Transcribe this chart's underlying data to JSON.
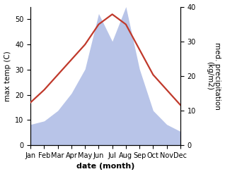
{
  "months": [
    "Jan",
    "Feb",
    "Mar",
    "Apr",
    "May",
    "Jun",
    "Jul",
    "Aug",
    "Sep",
    "Oct",
    "Nov",
    "Dec"
  ],
  "temperature": [
    17,
    22,
    28,
    34,
    40,
    48,
    52,
    48,
    38,
    28,
    22,
    16
  ],
  "precipitation": [
    6,
    7,
    10,
    15,
    22,
    38,
    30,
    40,
    22,
    10,
    6,
    4
  ],
  "temp_color": "#c0392b",
  "precip_fill_color": "#b8c4e8",
  "ylabel_left": "max temp (C)",
  "ylabel_right": "med. precipitation\n(kg/m2)",
  "xlabel": "date (month)",
  "ylim_left": [
    0,
    55
  ],
  "ylim_right": [
    0,
    40
  ],
  "yticks_left": [
    0,
    10,
    20,
    30,
    40,
    50
  ],
  "yticks_right": [
    0,
    10,
    20,
    30,
    40
  ],
  "temp_linewidth": 1.6,
  "xlabel_fontsize": 8,
  "ylabel_fontsize": 7.5,
  "tick_fontsize": 7
}
